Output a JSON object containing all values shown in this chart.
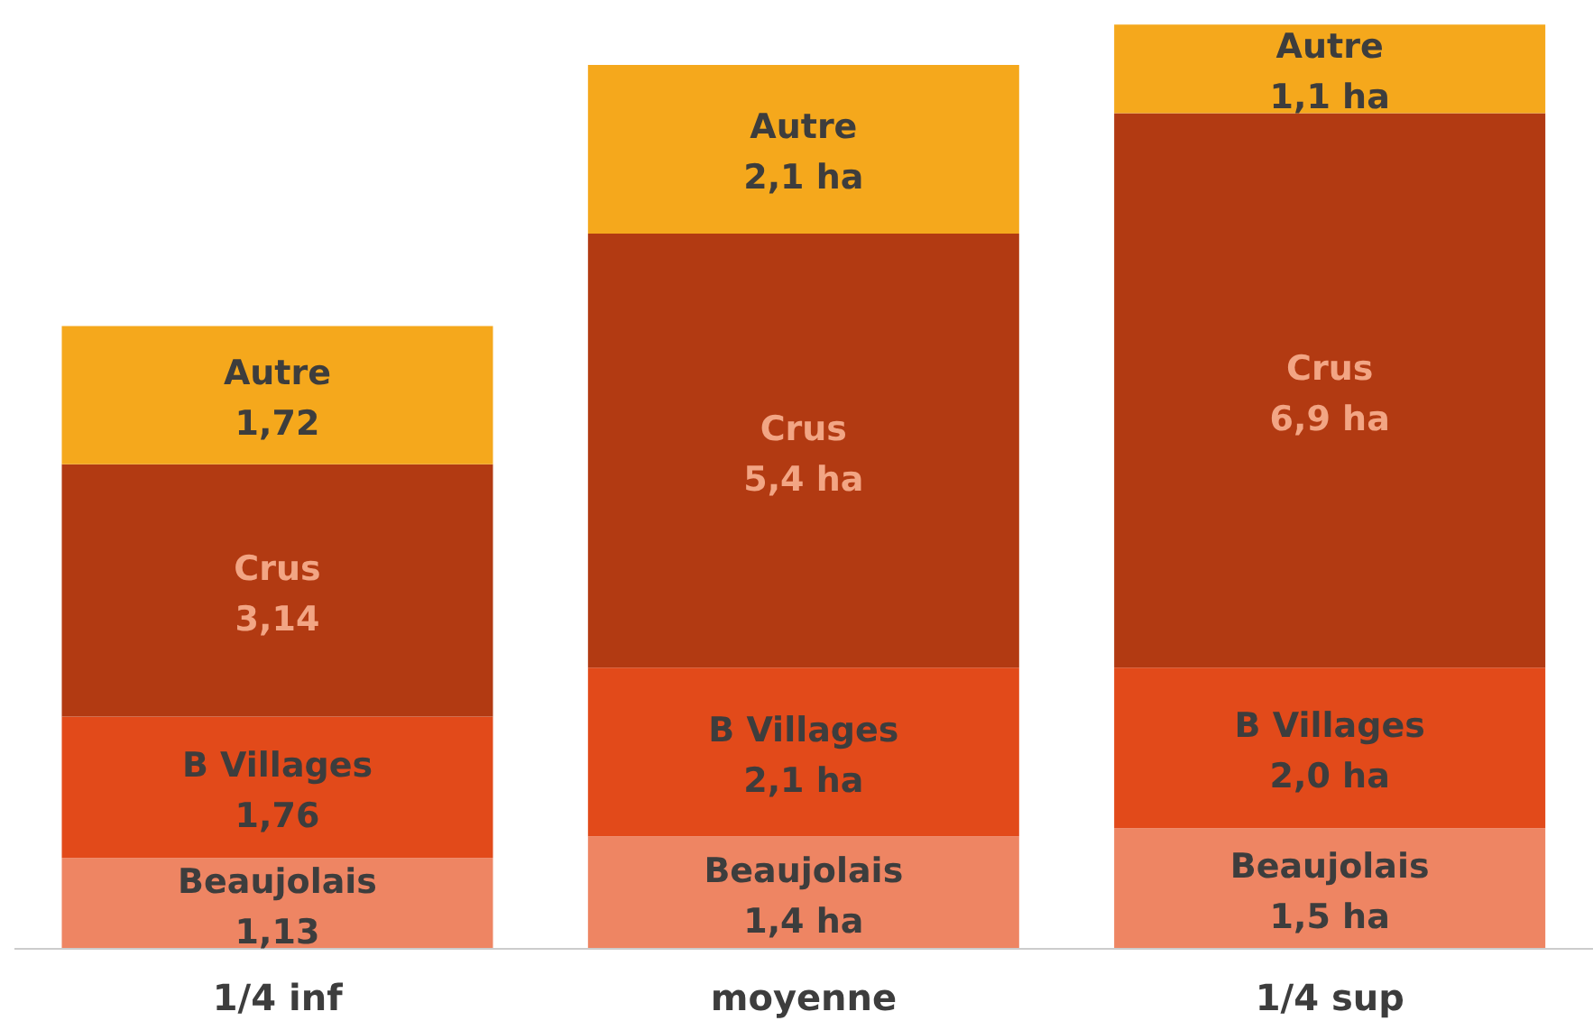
{
  "chart_data": {
    "type": "bar",
    "stacked": true,
    "categories": [
      "1/4 inf",
      "moyenne",
      "1/4 sup"
    ],
    "series": [
      {
        "name": "Beaujolais",
        "color": "#ee8563",
        "values": [
          1.13,
          1.4,
          1.5
        ],
        "value_labels": [
          "1,13",
          "1,4 ha",
          "1,5 ha"
        ]
      },
      {
        "name": "B Villages",
        "color": "#e24a1a",
        "values": [
          1.76,
          2.1,
          2.0
        ],
        "value_labels": [
          "1,76",
          "2,1 ha",
          "2,0 ha"
        ]
      },
      {
        "name": "Crus",
        "color": "#b23a12",
        "values": [
          3.14,
          5.4,
          6.9
        ],
        "value_labels": [
          "3,14",
          "5,4 ha",
          "6,9 ha"
        ]
      },
      {
        "name": "Autre",
        "color": "#f5a81c",
        "values": [
          1.72,
          2.1,
          1.1
        ],
        "value_labels": [
          "1,72",
          "2,1 ha",
          "1,1 ha"
        ]
      }
    ],
    "legend": false,
    "grid": false
  }
}
